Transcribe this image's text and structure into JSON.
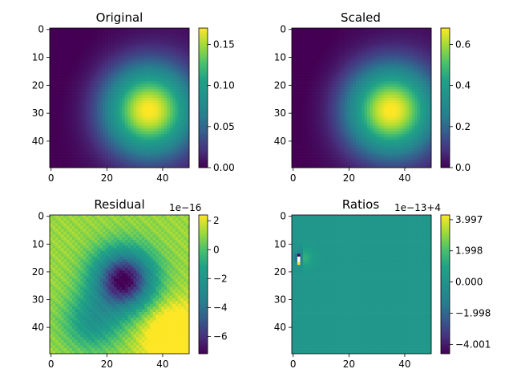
{
  "figure": {
    "background": "#ffffff"
  },
  "chart_data": [
    {
      "type": "heatmap",
      "title": "Original",
      "colormap": "viridis",
      "grid_shape": [
        50,
        50
      ],
      "field": "gaussian-blob",
      "xlim": [
        0,
        49
      ],
      "ylim": [
        49,
        0
      ],
      "x_ticks": [
        "0",
        "20",
        "40"
      ],
      "y_ticks": [
        "0",
        "10",
        "20",
        "30",
        "40"
      ],
      "vmin": 0.0,
      "vmax": 0.17,
      "colorbar_ticks": [
        "0.00",
        "0.05",
        "0.10",
        "0.15"
      ],
      "colorbar_tick_values": [
        0.0,
        0.05,
        0.1,
        0.15
      ],
      "colorbar_offset": ""
    },
    {
      "type": "heatmap",
      "title": "Scaled",
      "colormap": "viridis",
      "grid_shape": [
        50,
        50
      ],
      "field": "gaussian-blob",
      "xlim": [
        0,
        49
      ],
      "ylim": [
        49,
        0
      ],
      "x_ticks": [
        "0",
        "20",
        "40"
      ],
      "y_ticks": [
        "0",
        "10",
        "20",
        "30",
        "40"
      ],
      "vmin": 0.0,
      "vmax": 0.68,
      "colorbar_ticks": [
        "0.0",
        "0.2",
        "0.4",
        "0.6"
      ],
      "colorbar_tick_values": [
        0.0,
        0.2,
        0.4,
        0.6
      ],
      "colorbar_offset": ""
    },
    {
      "type": "heatmap",
      "title": "Residual",
      "colormap": "viridis",
      "grid_shape": [
        50,
        50
      ],
      "field": "residual",
      "xlim": [
        0,
        49
      ],
      "ylim": [
        49,
        0
      ],
      "x_ticks": [
        "0",
        "20",
        "40"
      ],
      "y_ticks": [
        "0",
        "10",
        "20",
        "30",
        "40"
      ],
      "vmin": -7.2,
      "vmax": 2.4,
      "colorbar_ticks": [
        "2",
        "0",
        "−2",
        "−4",
        "−6"
      ],
      "colorbar_tick_values": [
        2,
        0,
        -2,
        -4,
        -6
      ],
      "colorbar_offset": "1e−16"
    },
    {
      "type": "heatmap",
      "title": "Ratios",
      "colormap": "viridis",
      "grid_shape": [
        50,
        50
      ],
      "field": "ratios",
      "xlim": [
        0,
        49
      ],
      "ylim": [
        49,
        0
      ],
      "x_ticks": [
        "0",
        "20",
        "40"
      ],
      "y_ticks": [
        "0",
        "10",
        "20",
        "30",
        "40"
      ],
      "vmin": -4.6,
      "vmax": 4.3,
      "colorbar_ticks": [
        "3.997",
        "1.998",
        "0.000",
        "−1.998",
        "−4.001"
      ],
      "colorbar_tick_values": [
        3.997,
        1.998,
        0.0,
        -1.998,
        -4.001
      ],
      "colorbar_offset": "1e−13+4"
    }
  ]
}
